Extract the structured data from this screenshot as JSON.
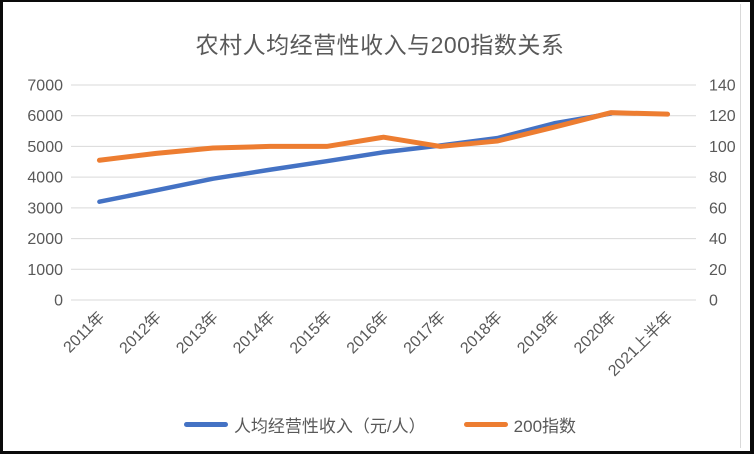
{
  "chart_data": {
    "type": "line",
    "title": "农村人均经营性收入与200指数关系",
    "categories": [
      "2011年",
      "2012年",
      "2013年",
      "2014年",
      "2015年",
      "2016年",
      "2017年",
      "2018年",
      "2019年",
      "2020年",
      "2021上半年"
    ],
    "series": [
      {
        "name": "人均经营性收入（元/人）",
        "axis": "left",
        "color": "#4472C4",
        "values": [
          3200,
          3570,
          3950,
          4240,
          4520,
          4810,
          5030,
          5270,
          5750,
          6070,
          null
        ]
      },
      {
        "name": "200指数",
        "axis": "right",
        "color": "#ED7D31",
        "values": [
          91,
          95.5,
          99,
          100,
          100,
          106,
          100,
          103.5,
          112.5,
          122,
          121
        ]
      }
    ],
    "left_axis": {
      "min": 0,
      "max": 7000,
      "step": 1000,
      "ticks": [
        "7000",
        "6000",
        "5000",
        "4000",
        "3000",
        "2000",
        "1000",
        "0"
      ]
    },
    "right_axis": {
      "min": 0,
      "max": 140,
      "step": 20,
      "ticks": [
        "140",
        "120",
        "100",
        "80",
        "60",
        "40",
        "20",
        "0"
      ]
    },
    "grid": true,
    "legend_position": "bottom",
    "colors": {
      "gridline": "#d9d9d9",
      "axis_text": "#595959",
      "title_text": "#595959"
    }
  }
}
